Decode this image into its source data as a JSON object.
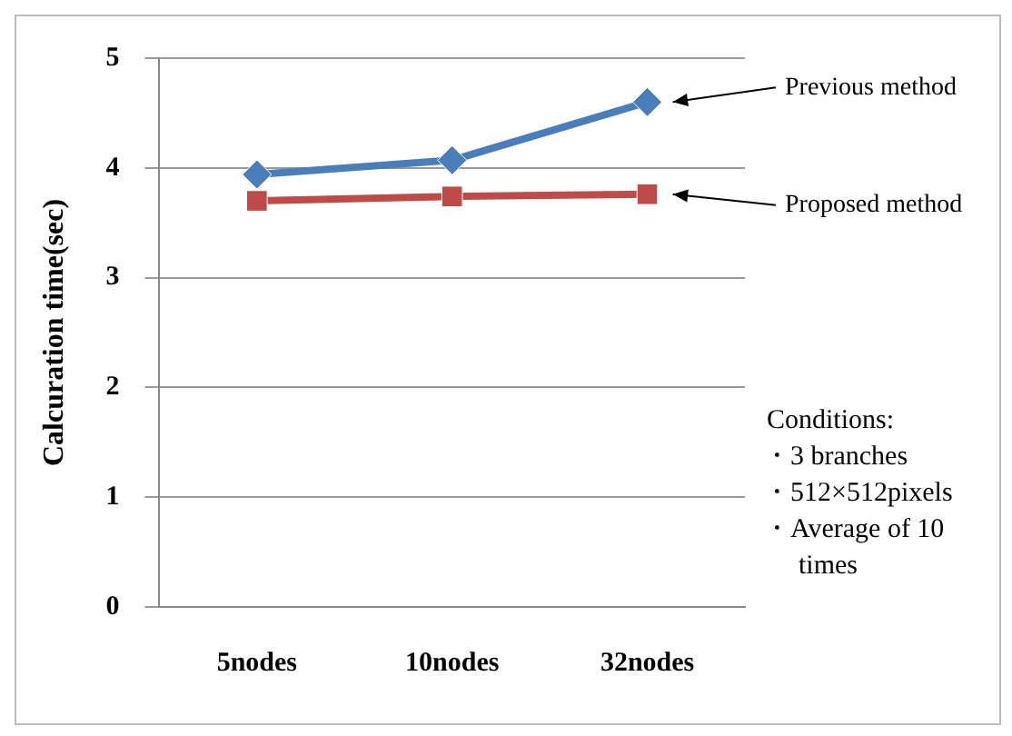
{
  "chart_data": {
    "type": "line",
    "ylabel": "Calcuration time(sec)",
    "categories": [
      "5nodes",
      "10nodes",
      "32nodes"
    ],
    "series": [
      {
        "name": "Previous method",
        "color": "#4a7ebb",
        "marker": "diamond",
        "values": [
          3.94,
          4.07,
          4.6
        ]
      },
      {
        "name": "Proposed method",
        "color": "#be4b48",
        "marker": "square",
        "values": [
          3.7,
          3.74,
          3.76
        ]
      }
    ],
    "ylim": [
      0,
      5
    ],
    "yticks": [
      0,
      1,
      2,
      3,
      4,
      5
    ],
    "grid": "y",
    "legend": false,
    "annotations": [
      "Conditions:",
      "・3 branches",
      "・512×512pixels",
      "・Average of 10 times"
    ]
  }
}
